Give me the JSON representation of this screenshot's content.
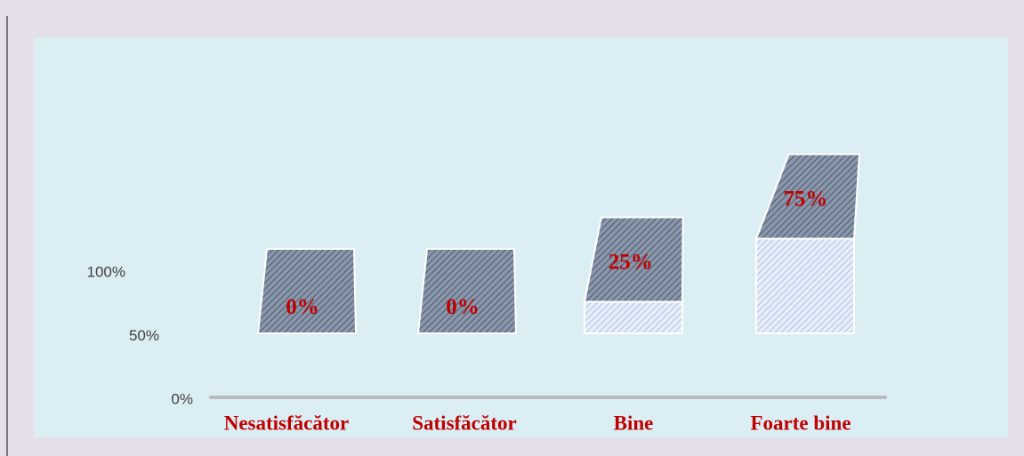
{
  "chart_data": {
    "type": "bar3d",
    "categories": [
      "Nesatisfăcător",
      "Satisfăcător",
      "Bine",
      "Foarte bine"
    ],
    "values": [
      0,
      0,
      25,
      75
    ],
    "value_labels": [
      "0%",
      "0%",
      "25%",
      "75%"
    ],
    "ylim": [
      0,
      100
    ],
    "yticks": [
      {
        "value": 0,
        "label": "0%"
      },
      {
        "value": 50,
        "label": "50%"
      },
      {
        "value": 100,
        "label": "100%"
      }
    ],
    "grid": false,
    "color": "#7f8ea3"
  }
}
